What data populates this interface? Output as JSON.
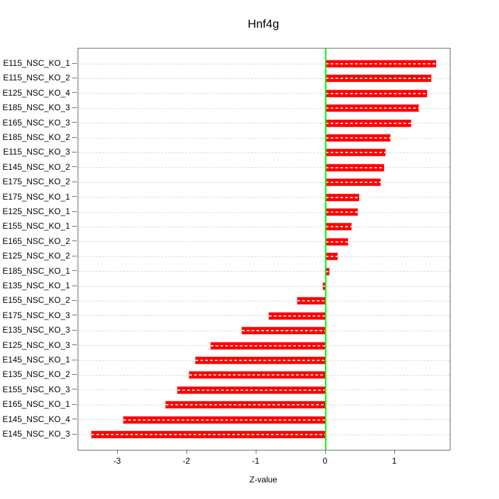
{
  "colors": {
    "bar_fill": "#ff0000",
    "bar_halo": "#ff8282",
    "bar_dash": "#ffffff",
    "zero_line": "#00ff00",
    "gridline": "#d9d9d9",
    "axis": "#737373",
    "text": "#000000"
  },
  "chart_data": {
    "type": "bar",
    "orientation": "horizontal",
    "title": "Hnf4g",
    "xlabel": "Z-value",
    "ylabel": "",
    "grid": true,
    "zero_line": true,
    "xlim": [
      -3.57,
      1.79
    ],
    "xticks": [
      -3,
      -2,
      -1,
      0,
      1
    ],
    "xtick_labels": [
      "-3",
      "-2",
      "-1",
      "0",
      "1"
    ],
    "categories": [
      "E115_NSC_KO_1",
      "E115_NSC_KO_2",
      "E125_NSC_KO_4",
      "E185_NSC_KO_3",
      "E165_NSC_KO_3",
      "E185_NSC_KO_2",
      "E115_NSC_KO_3",
      "E145_NSC_KO_2",
      "E175_NSC_KO_2",
      "E175_NSC_KO_1",
      "E125_NSC_KO_1",
      "E155_NSC_KO_1",
      "E165_NSC_KO_2",
      "E125_NSC_KO_2",
      "E185_NSC_KO_1",
      "E135_NSC_KO_1",
      "E155_NSC_KO_2",
      "E175_NSC_KO_3",
      "E135_NSC_KO_3",
      "E125_NSC_KO_3",
      "E145_NSC_KO_1",
      "E135_NSC_KO_2",
      "E155_NSC_KO_3",
      "E165_NSC_KO_1",
      "E145_NSC_KO_4",
      "E145_NSC_KO_3"
    ],
    "values": [
      1.59,
      1.52,
      1.46,
      1.34,
      1.23,
      0.93,
      0.86,
      0.84,
      0.79,
      0.48,
      0.46,
      0.37,
      0.32,
      0.17,
      0.05,
      -0.04,
      -0.41,
      -0.82,
      -1.21,
      -1.66,
      -1.88,
      -1.97,
      -2.14,
      -2.31,
      -2.92,
      -3.38
    ]
  }
}
